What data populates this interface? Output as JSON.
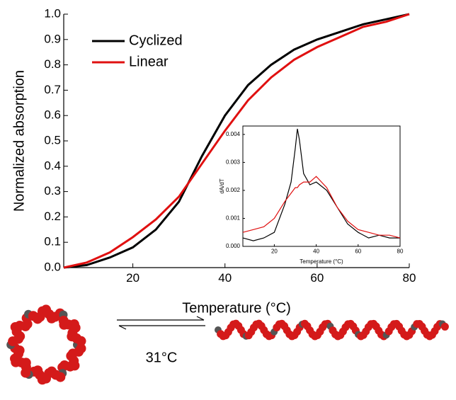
{
  "chart_data": [
    {
      "type": "line",
      "x_label": "Temperature (°C)",
      "y_label": "Normalized absorption",
      "x": [
        5,
        10,
        15,
        20,
        25,
        30,
        35,
        40,
        45,
        50,
        55,
        60,
        65,
        70,
        75,
        80
      ],
      "series": [
        {
          "name": "Cyclized",
          "color": "#000000",
          "values": [
            0,
            0.01,
            0.04,
            0.08,
            0.15,
            0.26,
            0.44,
            0.6,
            0.72,
            0.8,
            0.86,
            0.9,
            0.93,
            0.96,
            0.98,
            1.0
          ]
        },
        {
          "name": "Linear",
          "color": "#e01010",
          "values": [
            0,
            0.02,
            0.06,
            0.12,
            0.19,
            0.28,
            0.41,
            0.54,
            0.66,
            0.75,
            0.82,
            0.87,
            0.91,
            0.95,
            0.97,
            1.0
          ]
        }
      ],
      "xlim": [
        5,
        80
      ],
      "xticks": [
        20,
        40,
        60,
        80
      ],
      "ylim": [
        0,
        1
      ],
      "yticks": [
        {
          "value": 0,
          "label": "0.0"
        },
        0.1,
        0.2,
        0.3,
        0.4,
        0.5,
        0.6,
        0.7,
        0.8,
        0.9,
        {
          "value": 1,
          "label": "1.0"
        }
      ],
      "legend": "upper left"
    },
    {
      "type": "line",
      "x_label": "Temperature (°C)",
      "y_label": "dA/dT",
      "x": [
        5,
        10,
        15,
        20,
        25,
        28,
        30,
        31,
        32,
        34,
        37,
        40,
        45,
        50,
        55,
        60,
        65,
        70,
        75,
        80
      ],
      "series": [
        {
          "color": "#000000",
          "values": [
            0.0003,
            0.0002,
            0.0003,
            0.0005,
            0.0015,
            0.0023,
            0.0035,
            0.0042,
            0.0038,
            0.0026,
            0.0022,
            0.0023,
            0.002,
            0.0014,
            0.0008,
            0.0005,
            0.0003,
            0.0004,
            0.0003,
            0.0003
          ]
        },
        {
          "color": "#e01010",
          "values": [
            0.0005,
            0.0006,
            0.0007,
            0.001,
            0.0016,
            0.0019,
            0.0021,
            0.0021,
            0.0022,
            0.0023,
            0.0023,
            0.0025,
            0.0021,
            0.0014,
            0.0009,
            0.0006,
            0.0005,
            0.0004,
            0.0004,
            0.0003
          ]
        }
      ],
      "xlim": [
        5,
        80
      ],
      "xticks": [
        20,
        40,
        60,
        80
      ],
      "ylim": [
        0,
        0.0043
      ],
      "yticks": [
        {
          "value": 0,
          "label": "0.000"
        },
        {
          "value": 0.001,
          "label": "0.001"
        },
        {
          "value": 0.002,
          "label": "0.002"
        },
        {
          "value": 0.003,
          "label": "0.003"
        },
        {
          "value": 0.004,
          "label": "0.004"
        }
      ]
    }
  ],
  "diagram": {
    "label": "31°C"
  }
}
